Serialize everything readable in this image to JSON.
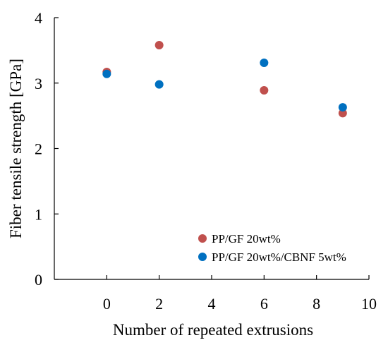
{
  "chart_data": {
    "type": "scatter",
    "title": "",
    "xlabel": "Number of repeated extrusions",
    "ylabel": "Fiber tensile strength [GPa]",
    "xlim": [
      -2,
      10
    ],
    "ylim": [
      0,
      4
    ],
    "xticks": [
      0,
      2,
      4,
      6,
      8,
      10
    ],
    "yticks": [
      0,
      1,
      2,
      3,
      4
    ],
    "xtick_labels": [
      "0",
      "2",
      "4",
      "6",
      "8",
      "10"
    ],
    "ytick_labels": [
      "0",
      "1",
      "2",
      "3",
      "4"
    ],
    "grid": false,
    "legend_position": "bottom-right",
    "series": [
      {
        "name": "PP/GF 20wt%",
        "color": "#c0504d",
        "x": [
          0,
          2,
          6,
          9
        ],
        "y": [
          3.17,
          3.58,
          2.89,
          2.54
        ]
      },
      {
        "name": "PP/GF 20wt%/CBNF 5wt%",
        "color": "#0070c0",
        "x": [
          0,
          2,
          6,
          9
        ],
        "y": [
          3.14,
          2.98,
          3.31,
          2.63
        ]
      }
    ]
  }
}
